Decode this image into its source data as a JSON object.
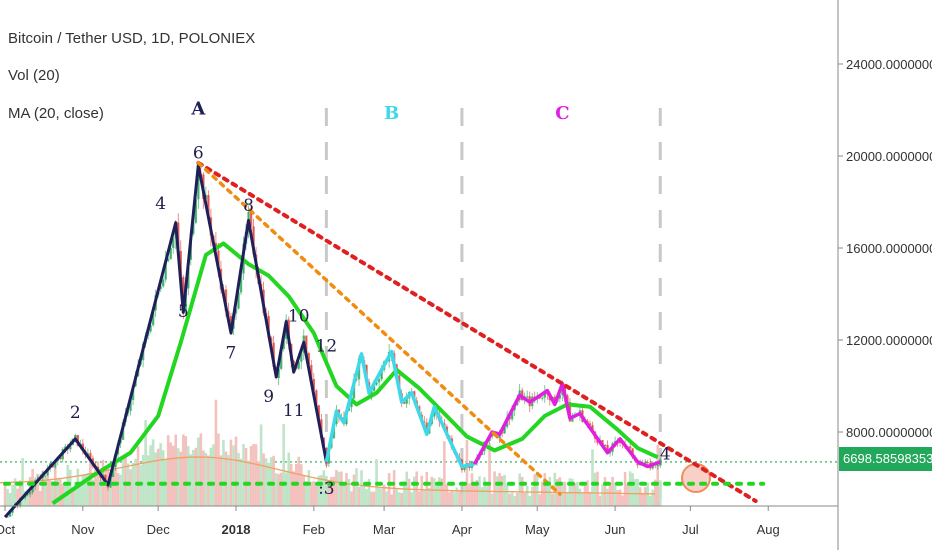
{
  "legend": {
    "title": "Bitcoin / Tether USD, 1D, POLONIEX",
    "vol": "Vol (20)",
    "ma": "MA (20, close)"
  },
  "price_tag": "6698.58598353",
  "colors": {
    "impulse": "#1f1f5a",
    "waveB": "#3fd8e8",
    "waveC": "#e020e0",
    "ma": "#22d622",
    "red_trend": "#e02020",
    "orange_trend": "#f08c10",
    "support": "#22d622",
    "candle_up": "#26a65b",
    "candle_down": "#e0403a"
  },
  "chart_data": {
    "type": "line",
    "title": "Bitcoin / Tether USD, 1D, POLONIEX",
    "y_ticks": [
      "24000.00000000",
      "20000.00000000",
      "16000.00000000",
      "12000.00000000",
      "8000.00000000"
    ],
    "x_ticks": [
      "Oct",
      "Nov",
      "Dec",
      "2018",
      "Feb",
      "Mar",
      "Apr",
      "May",
      "Jun",
      "Jul",
      "Aug"
    ],
    "ylim": [
      4500,
      26500
    ],
    "xlim": [
      "2017-09-29",
      "2018-08-28"
    ],
    "wave_labels": [
      "A",
      "B",
      "C"
    ],
    "count_labels": [
      "2",
      "4",
      "5",
      "6",
      "7",
      "8",
      "9",
      "10",
      "11",
      "12",
      ":3",
      "4"
    ],
    "series": [
      {
        "name": "",
        "role": "impulse",
        "points": [
          [
            "2017-10-01",
            4300
          ],
          [
            "2017-10-29",
            7700
          ],
          [
            "2017-11-11",
            5700
          ],
          [
            "2017-12-08",
            17100
          ],
          [
            "2017-12-11",
            13200
          ],
          [
            "2017-12-17",
            19600
          ],
          [
            "2017-12-30",
            12300
          ],
          [
            "2018-01-06",
            17200
          ],
          [
            "2018-01-17",
            10400
          ],
          [
            "2018-01-21",
            12800
          ],
          [
            "2018-01-24",
            10600
          ],
          [
            "2018-01-28",
            11900
          ],
          [
            "2018-02-06",
            6700
          ]
        ]
      },
      {
        "name": "",
        "role": "waveB",
        "points": [
          [
            "2018-02-06",
            6700
          ],
          [
            "2018-02-10",
            8900
          ],
          [
            "2018-02-13",
            8400
          ],
          [
            "2018-02-20",
            11400
          ],
          [
            "2018-02-23",
            9700
          ],
          [
            "2018-03-04",
            11500
          ],
          [
            "2018-03-08",
            9300
          ],
          [
            "2018-03-12",
            9700
          ],
          [
            "2018-03-18",
            7900
          ],
          [
            "2018-03-21",
            9100
          ],
          [
            "2018-04-01",
            6500
          ],
          [
            "2018-04-06",
            6600
          ]
        ]
      },
      {
        "name": "",
        "role": "waveC",
        "points": [
          [
            "2018-04-06",
            6600
          ],
          [
            "2018-04-13",
            8000
          ],
          [
            "2018-04-16",
            7900
          ],
          [
            "2018-04-24",
            9600
          ],
          [
            "2018-04-28",
            9300
          ],
          [
            "2018-05-01",
            9500
          ],
          [
            "2018-05-05",
            9800
          ],
          [
            "2018-05-08",
            9200
          ],
          [
            "2018-05-11",
            10100
          ],
          [
            "2018-05-14",
            8600
          ],
          [
            "2018-05-18",
            8800
          ],
          [
            "2018-05-29",
            7100
          ],
          [
            "2018-06-03",
            7700
          ],
          [
            "2018-06-10",
            6700
          ],
          [
            "2018-06-14",
            6500
          ],
          [
            "2018-06-19",
            6700
          ]
        ]
      },
      {
        "name": "MA (20, close)",
        "role": "ma",
        "points": [
          [
            "2017-10-20",
            4900
          ],
          [
            "2017-11-05",
            6100
          ],
          [
            "2017-11-20",
            7100
          ],
          [
            "2017-12-01",
            8700
          ],
          [
            "2017-12-10",
            11900
          ],
          [
            "2017-12-20",
            15700
          ],
          [
            "2017-12-27",
            16200
          ],
          [
            "2018-01-06",
            15300
          ],
          [
            "2018-01-14",
            14800
          ],
          [
            "2018-01-22",
            13900
          ],
          [
            "2018-02-01",
            12300
          ],
          [
            "2018-02-10",
            10000
          ],
          [
            "2018-02-18",
            9200
          ],
          [
            "2018-02-26",
            9700
          ],
          [
            "2018-03-06",
            10700
          ],
          [
            "2018-03-15",
            9900
          ],
          [
            "2018-03-25",
            8800
          ],
          [
            "2018-04-03",
            7800
          ],
          [
            "2018-04-14",
            7200
          ],
          [
            "2018-04-25",
            7700
          ],
          [
            "2018-05-04",
            8700
          ],
          [
            "2018-05-13",
            9200
          ],
          [
            "2018-05-22",
            9100
          ],
          [
            "2018-06-02",
            8100
          ],
          [
            "2018-06-10",
            7300
          ],
          [
            "2018-06-18",
            6900
          ]
        ]
      }
    ],
    "trendlines": [
      {
        "role": "red_trend",
        "from": [
          "2017-12-17",
          19700
        ],
        "to": [
          "2018-07-27",
          5000
        ]
      },
      {
        "role": "orange_trend",
        "from": [
          "2017-12-17",
          19700
        ],
        "to": [
          "2018-05-10",
          5300
        ]
      },
      {
        "role": "support",
        "from": [
          "2017-10-01",
          5750
        ],
        "to": [
          "2018-07-30",
          5750
        ]
      }
    ],
    "horizontal_line": 6698.58598353
  }
}
